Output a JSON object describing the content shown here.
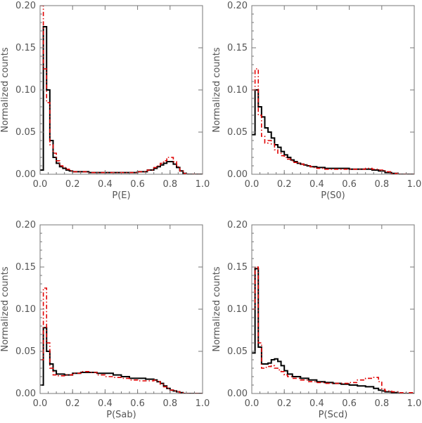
{
  "colors": {
    "black_series": "#000000",
    "red_series": "#e00000",
    "axis": "#777777"
  },
  "chart_data": [
    {
      "type": "step",
      "xlabel": "P(E)",
      "ylabel": "Normalized counts",
      "xlim": [
        0.0,
        1.0
      ],
      "ylim": [
        0.0,
        0.2
      ],
      "xticks": [
        "0.0",
        "0.2",
        "0.4",
        "0.6",
        "0.8",
        "1.0"
      ],
      "yticks": [
        "0.00",
        "0.05",
        "0.10",
        "0.15",
        "0.20"
      ],
      "series": [
        {
          "color": "#000000",
          "style": "solid",
          "x": [
            0.0,
            0.02,
            0.04,
            0.06,
            0.08,
            0.1,
            0.12,
            0.14,
            0.16,
            0.18,
            0.2,
            0.3,
            0.4,
            0.5,
            0.6,
            0.66,
            0.7,
            0.72,
            0.74,
            0.76,
            0.78,
            0.8,
            0.82,
            0.84,
            0.86,
            0.88,
            0.9,
            1.0
          ],
          "y": [
            0.005,
            0.175,
            0.1,
            0.04,
            0.02,
            0.013,
            0.009,
            0.007,
            0.005,
            0.004,
            0.003,
            0.002,
            0.002,
            0.002,
            0.003,
            0.005,
            0.007,
            0.009,
            0.011,
            0.013,
            0.015,
            0.015,
            0.012,
            0.008,
            0.004,
            0.001,
            0.0,
            0.0
          ]
        },
        {
          "color": "#e00000",
          "style": "dashdot",
          "x": [
            0.0,
            0.02,
            0.04,
            0.06,
            0.08,
            0.1,
            0.12,
            0.14,
            0.16,
            0.18,
            0.2,
            0.3,
            0.4,
            0.5,
            0.6,
            0.66,
            0.7,
            0.72,
            0.74,
            0.76,
            0.78,
            0.8,
            0.82,
            0.84,
            0.86,
            0.88,
            0.9,
            1.0
          ],
          "y": [
            0.2,
            0.125,
            0.085,
            0.035,
            0.025,
            0.016,
            0.01,
            0.008,
            0.006,
            0.004,
            0.003,
            0.002,
            0.002,
            0.002,
            0.003,
            0.005,
            0.008,
            0.01,
            0.013,
            0.016,
            0.02,
            0.02,
            0.015,
            0.009,
            0.004,
            0.001,
            0.0,
            0.0
          ]
        }
      ]
    },
    {
      "type": "step",
      "xlabel": "P(S0)",
      "ylabel": "Normalized counts",
      "xlim": [
        0.0,
        1.0
      ],
      "ylim": [
        0.0,
        0.2
      ],
      "xticks": [
        "0.0",
        "0.2",
        "0.4",
        "0.6",
        "0.8",
        "1.0"
      ],
      "yticks": [
        "0.00",
        "0.05",
        "0.10",
        "0.15",
        "0.20"
      ],
      "series": [
        {
          "color": "#000000",
          "style": "solid",
          "x": [
            0.0,
            0.02,
            0.04,
            0.06,
            0.08,
            0.1,
            0.12,
            0.14,
            0.16,
            0.18,
            0.2,
            0.22,
            0.24,
            0.26,
            0.28,
            0.3,
            0.32,
            0.34,
            0.36,
            0.38,
            0.4,
            0.45,
            0.5,
            0.6,
            0.7,
            0.74,
            0.78,
            0.82,
            0.86,
            0.9,
            1.0
          ],
          "y": [
            0.047,
            0.1,
            0.08,
            0.068,
            0.055,
            0.05,
            0.043,
            0.035,
            0.032,
            0.027,
            0.023,
            0.02,
            0.017,
            0.015,
            0.013,
            0.012,
            0.011,
            0.01,
            0.009,
            0.009,
            0.008,
            0.007,
            0.007,
            0.006,
            0.006,
            0.005,
            0.004,
            0.002,
            0.001,
            0.0,
            0.0
          ]
        },
        {
          "color": "#e00000",
          "style": "dashdot",
          "x": [
            0.0,
            0.02,
            0.04,
            0.06,
            0.08,
            0.1,
            0.12,
            0.14,
            0.16,
            0.18,
            0.2,
            0.22,
            0.24,
            0.26,
            0.28,
            0.3,
            0.32,
            0.34,
            0.36,
            0.38,
            0.4,
            0.45,
            0.5,
            0.6,
            0.7,
            0.74,
            0.78,
            0.82,
            0.86,
            0.9,
            1.0
          ],
          "y": [
            0.1,
            0.125,
            0.07,
            0.045,
            0.037,
            0.04,
            0.036,
            0.029,
            0.025,
            0.022,
            0.02,
            0.018,
            0.016,
            0.014,
            0.013,
            0.012,
            0.011,
            0.01,
            0.009,
            0.008,
            0.007,
            0.006,
            0.006,
            0.006,
            0.007,
            0.006,
            0.005,
            0.003,
            0.001,
            0.0,
            0.0
          ]
        }
      ]
    },
    {
      "type": "step",
      "xlabel": "P(Sab)",
      "ylabel": "Normalized counts",
      "xlim": [
        0.0,
        1.0
      ],
      "ylim": [
        0.0,
        0.2
      ],
      "xticks": [
        "0.0",
        "0.2",
        "0.4",
        "0.6",
        "0.8",
        "1.0"
      ],
      "yticks": [
        "0.00",
        "0.05",
        "0.10",
        "0.15",
        "0.20"
      ],
      "series": [
        {
          "color": "#000000",
          "style": "solid",
          "x": [
            0.0,
            0.02,
            0.04,
            0.06,
            0.08,
            0.1,
            0.15,
            0.2,
            0.25,
            0.3,
            0.35,
            0.4,
            0.45,
            0.5,
            0.55,
            0.6,
            0.65,
            0.7,
            0.72,
            0.74,
            0.76,
            0.78,
            0.8,
            0.82,
            0.84,
            0.86,
            0.88,
            0.9,
            1.0
          ],
          "y": [
            0.01,
            0.078,
            0.05,
            0.035,
            0.027,
            0.023,
            0.022,
            0.024,
            0.025,
            0.025,
            0.024,
            0.024,
            0.022,
            0.02,
            0.018,
            0.018,
            0.017,
            0.016,
            0.014,
            0.012,
            0.009,
            0.006,
            0.004,
            0.003,
            0.002,
            0.001,
            0.0,
            0.0,
            0.0
          ]
        },
        {
          "color": "#e00000",
          "style": "dashdot",
          "x": [
            0.0,
            0.02,
            0.04,
            0.06,
            0.08,
            0.1,
            0.15,
            0.2,
            0.25,
            0.3,
            0.35,
            0.4,
            0.45,
            0.5,
            0.55,
            0.6,
            0.65,
            0.7,
            0.72,
            0.74,
            0.76,
            0.78,
            0.8,
            0.82,
            0.84,
            0.86,
            0.88,
            0.9,
            1.0
          ],
          "y": [
            0.04,
            0.125,
            0.06,
            0.03,
            0.022,
            0.021,
            0.022,
            0.024,
            0.026,
            0.025,
            0.022,
            0.02,
            0.019,
            0.018,
            0.016,
            0.015,
            0.015,
            0.016,
            0.014,
            0.011,
            0.008,
            0.006,
            0.004,
            0.003,
            0.002,
            0.001,
            0.0,
            0.0,
            0.0
          ]
        }
      ]
    },
    {
      "type": "step",
      "xlabel": "P(Scd)",
      "ylabel": "Normalized counts",
      "xlim": [
        0.0,
        1.0
      ],
      "ylim": [
        0.0,
        0.2
      ],
      "xticks": [
        "0.0",
        "0.2",
        "0.4",
        "0.6",
        "0.8",
        "1.0"
      ],
      "yticks": [
        "0.00",
        "0.05",
        "0.10",
        "0.15",
        "0.20"
      ],
      "series": [
        {
          "color": "#000000",
          "style": "solid",
          "x": [
            0.0,
            0.02,
            0.04,
            0.06,
            0.08,
            0.1,
            0.12,
            0.14,
            0.16,
            0.18,
            0.2,
            0.22,
            0.25,
            0.3,
            0.35,
            0.4,
            0.45,
            0.5,
            0.55,
            0.6,
            0.65,
            0.7,
            0.75,
            0.78,
            0.8,
            0.82,
            0.86,
            0.9,
            1.0
          ],
          "y": [
            0.048,
            0.148,
            0.055,
            0.035,
            0.035,
            0.036,
            0.04,
            0.041,
            0.038,
            0.033,
            0.027,
            0.023,
            0.02,
            0.018,
            0.016,
            0.014,
            0.013,
            0.012,
            0.011,
            0.01,
            0.009,
            0.008,
            0.006,
            0.004,
            0.003,
            0.002,
            0.001,
            0.0,
            0.0
          ]
        },
        {
          "color": "#e00000",
          "style": "dashdot",
          "x": [
            0.0,
            0.02,
            0.04,
            0.06,
            0.08,
            0.1,
            0.12,
            0.14,
            0.16,
            0.18,
            0.2,
            0.22,
            0.25,
            0.3,
            0.35,
            0.4,
            0.45,
            0.5,
            0.55,
            0.6,
            0.65,
            0.7,
            0.75,
            0.78,
            0.8,
            0.82,
            0.86,
            0.9,
            1.0
          ],
          "y": [
            0.1,
            0.15,
            0.06,
            0.03,
            0.031,
            0.032,
            0.033,
            0.03,
            0.028,
            0.026,
            0.022,
            0.02,
            0.018,
            0.016,
            0.014,
            0.013,
            0.012,
            0.012,
            0.012,
            0.013,
            0.016,
            0.018,
            0.019,
            0.014,
            0.005,
            0.003,
            0.002,
            0.001,
            0.0
          ]
        }
      ]
    }
  ]
}
